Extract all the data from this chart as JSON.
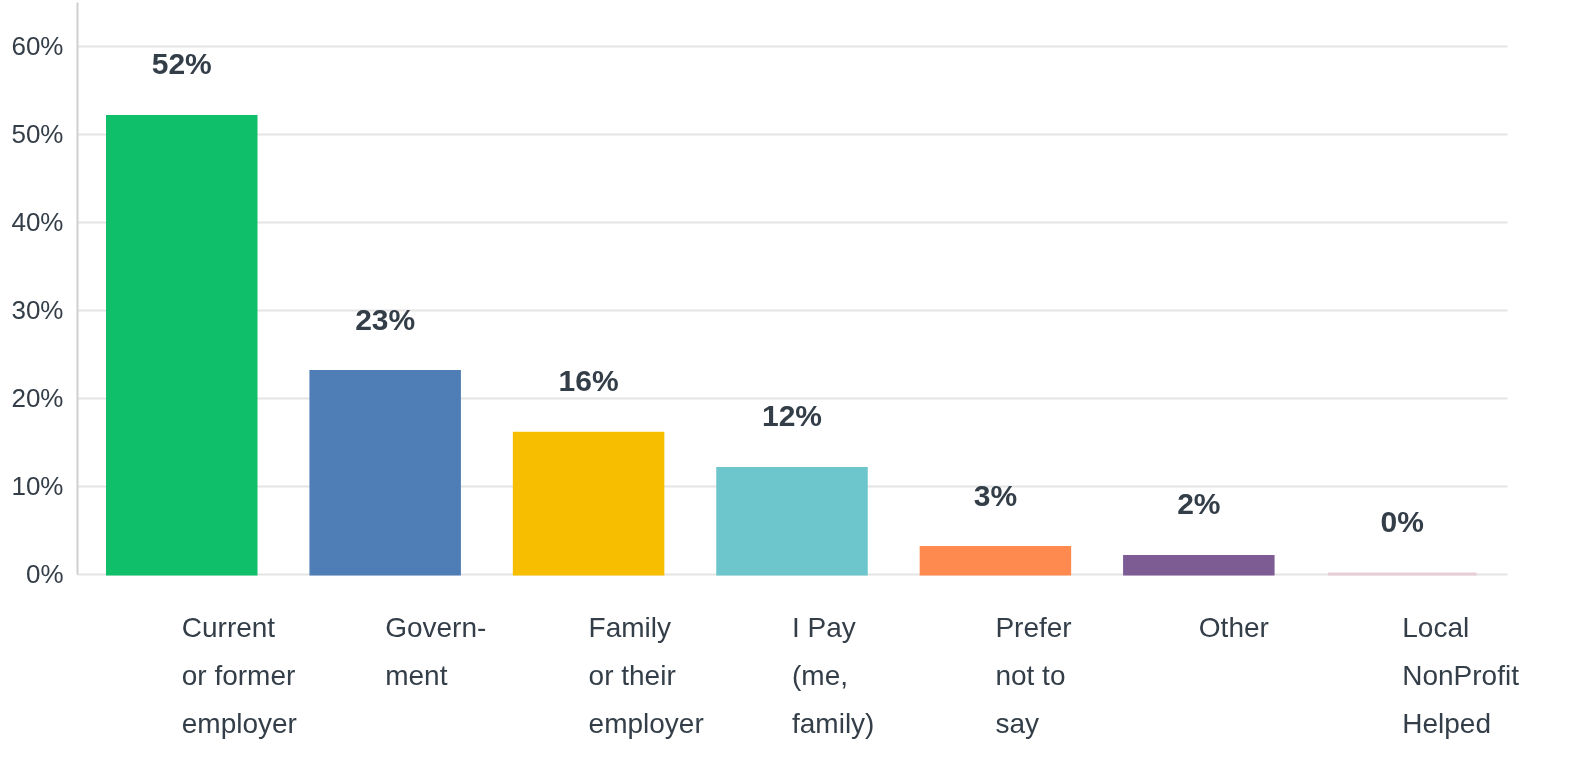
{
  "chart_data": {
    "type": "bar",
    "categories": [
      "Current\nor former\nemployer",
      "Govern-\nment",
      "Family\nor their\nemployer",
      "I Pay\n(me,\nfamily)",
      "Prefer\nnot to\nsay",
      "Other",
      "Local\nNonProfit\nHelped"
    ],
    "values": [
      52,
      23,
      16,
      12,
      3,
      2,
      0
    ],
    "value_labels": [
      "52%",
      "23%",
      "16%",
      "12%",
      "3%",
      "2%",
      "0%"
    ],
    "colors": [
      "#0fbf69",
      "#4f7db6",
      "#f7be00",
      "#6cc6cb",
      "#ff8a4f",
      "#7c5c93",
      "#e6cdd6"
    ],
    "ylim": [
      0,
      65
    ],
    "yticks": [
      {
        "value": 0,
        "label": "0%"
      },
      {
        "value": 10,
        "label": "10%"
      },
      {
        "value": 20,
        "label": "20%"
      },
      {
        "value": 30,
        "label": "30%"
      },
      {
        "value": 40,
        "label": "40%"
      },
      {
        "value": 50,
        "label": "50%"
      },
      {
        "value": 60,
        "label": "60%"
      }
    ],
    "grid": "y"
  }
}
